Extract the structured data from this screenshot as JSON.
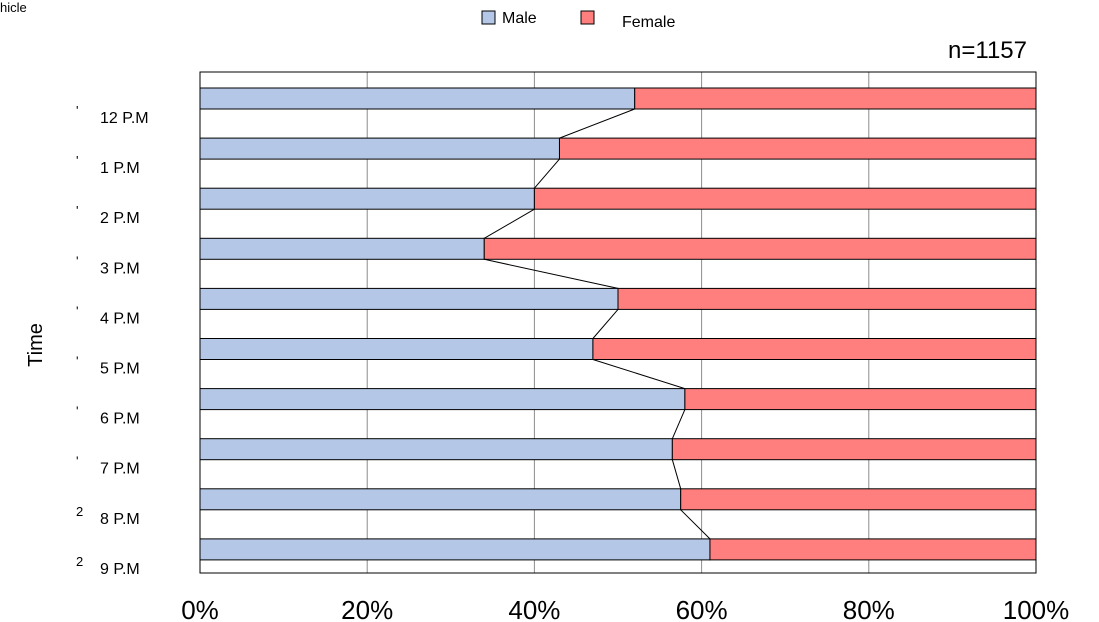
{
  "corner_label": "hicle",
  "chart_data": {
    "type": "bar",
    "orientation": "horizontal",
    "stacked": "percent",
    "ylabel": "Time",
    "xlabel": "",
    "annotation": "n=1157",
    "categories": [
      "12 P.M",
      "1 P.M",
      "2 P.M",
      "3 P.M",
      "4 P.M",
      "5 P.M",
      "6 P.M",
      "7 P.M",
      "8 P.M",
      "9 P.M"
    ],
    "series": [
      {
        "name": "Male",
        "color": "#b4c7e7",
        "values": [
          52,
          43,
          40,
          34,
          50,
          47,
          58,
          56.5,
          57.5,
          61
        ]
      },
      {
        "name": "Female",
        "color": "#ff7f7f",
        "values": [
          48,
          57,
          60,
          66,
          50,
          53,
          42,
          43.5,
          42.5,
          39
        ]
      }
    ],
    "xticks": [
      "0%",
      "20%",
      "40%",
      "60%",
      "80%",
      "100%"
    ],
    "xlim": [
      0,
      100
    ],
    "grid": true,
    "legend_position": "top",
    "connector_line": true,
    "row_glyphs": [
      "'",
      "'",
      "'",
      "'",
      "'",
      "'",
      "'",
      "'",
      "2",
      "2"
    ]
  }
}
